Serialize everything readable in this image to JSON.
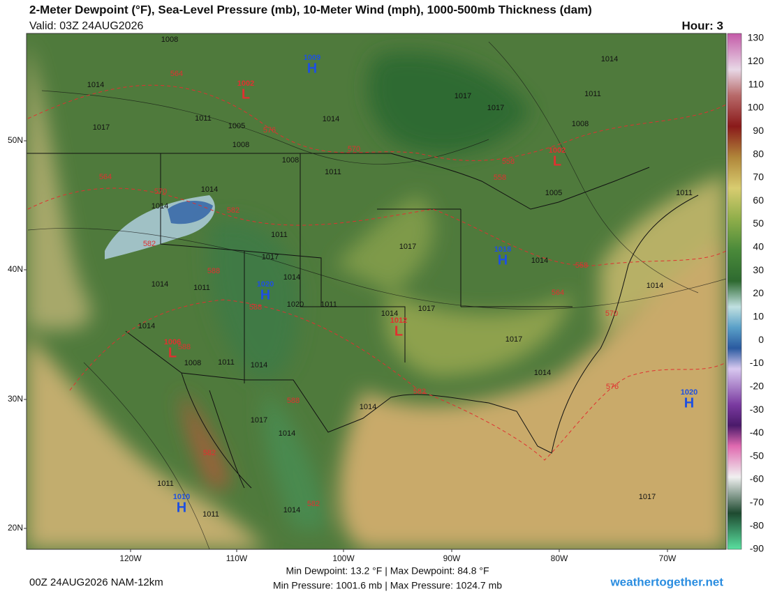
{
  "header": {
    "title": "2-Meter Dewpoint (°F), Sea-Level Pressure (mb), 10-Meter Wind (mph), 1000-500mb Thickness (dam)",
    "valid": "Valid: 03Z 24AUG2026",
    "hour": "Hour: 3"
  },
  "map": {
    "lat_labels": [
      "50N",
      "40N",
      "30N",
      "20N"
    ],
    "lon_labels": [
      "120W",
      "110W",
      "100W",
      "90W",
      "80W",
      "70W"
    ],
    "centers": [
      {
        "letter": "H",
        "value": "1009"
      },
      {
        "letter": "L",
        "value": "1002"
      },
      {
        "letter": "L",
        "value": "1002"
      },
      {
        "letter": "H",
        "value": "1018"
      },
      {
        "letter": "H",
        "value": "1020"
      },
      {
        "letter": "L",
        "value": "1012"
      },
      {
        "letter": "L",
        "value": "1006"
      },
      {
        "letter": "H",
        "value": "1020"
      },
      {
        "letter": "H",
        "value": "1010"
      }
    ],
    "isobar_labels": [
      "1008",
      "1014",
      "1014",
      "1017",
      "1017",
      "1011",
      "1017",
      "1011",
      "1005",
      "1014",
      "1008",
      "1008",
      "1008",
      "1011",
      "1014",
      "1014",
      "1005",
      "1011",
      "1011",
      "1017",
      "1017",
      "1014",
      "1014",
      "1011",
      "1014",
      "1014",
      "1020",
      "1011",
      "1014",
      "1017",
      "1017",
      "1014",
      "1008",
      "1011",
      "1014",
      "1014",
      "1014",
      "1017",
      "1014",
      "1011",
      "1011",
      "1017",
      "1014"
    ],
    "thickness_labels": [
      "564",
      "576",
      "570",
      "558",
      "558",
      "564",
      "570",
      "582",
      "582",
      "588",
      "558",
      "564",
      "570",
      "588",
      "588",
      "582",
      "576",
      "588",
      "582",
      "582"
    ]
  },
  "colorbar": {
    "ticks": [
      "130",
      "120",
      "110",
      "100",
      "90",
      "80",
      "70",
      "60",
      "50",
      "40",
      "30",
      "20",
      "10",
      "0",
      "-10",
      "-20",
      "-30",
      "-40",
      "-50",
      "-60",
      "-70",
      "-80",
      "-90"
    ]
  },
  "footer": {
    "run": "00Z 24AUG2026 NAM-12km",
    "dewpoint_range": "Min Dewpoint:  13.2 °F | Max Dewpoint:  84.8 °F",
    "pressure_range": "Min Pressure: 1001.6 mb | Max Pressure: 1024.7 mb",
    "site": "weathertogether.net"
  }
}
